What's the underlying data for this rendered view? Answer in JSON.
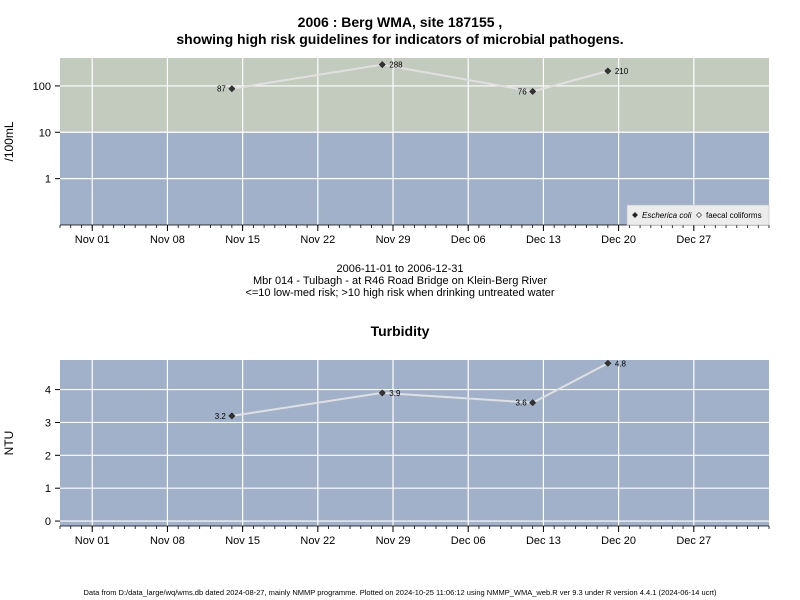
{
  "header": {
    "title_line1": "2006 : Berg WMA, site 187155 ,",
    "title_line2": "showing high risk guidelines for indicators of microbial pathogens."
  },
  "middle": {
    "date_range": "2006-11-01 to 2006-12-31",
    "site_desc": "Mbr 014 - Tulbagh - at R46 Road Bridge on Klein-Berg River",
    "risk_note": "<=10 low-med risk; >10 high risk when drinking untreated water"
  },
  "turbidity_title": "Turbidity",
  "footer": "Data from D:/data_large/wq/wms.db dated 2024-08-27, mainly NMMP programme. Plotted on 2024-10-25 11:06:12 using NMMP_WMA_web.R ver 9.3 under R version 4.4.1 (2024-06-14 ucrt)",
  "colors": {
    "high_risk_band": "#c3cbbf",
    "low_risk_band": "#a1b1c9",
    "grid": "#ffffff",
    "line": "#e0e0e0",
    "point": "#333333"
  },
  "chart_data": [
    {
      "type": "line",
      "ylabel": "/100mL",
      "yscale": "log",
      "ylim": [
        0.1,
        400
      ],
      "xlim": [
        "2006-10-29",
        "2007-01-03"
      ],
      "x_ticks": [
        "Nov 01",
        "Nov 08",
        "Nov 15",
        "Nov 22",
        "Nov 29",
        "Dec 06",
        "Dec 13",
        "Dec 20",
        "Dec 27"
      ],
      "x_tick_dates": [
        "2006-11-01",
        "2006-11-08",
        "2006-11-15",
        "2006-11-22",
        "2006-11-29",
        "2006-12-06",
        "2006-12-13",
        "2006-12-20",
        "2006-12-27"
      ],
      "y_ticks": [
        1,
        10,
        100
      ],
      "y_tick_labels": [
        "1",
        "10",
        "100"
      ],
      "threshold": 10,
      "grid": true,
      "legend_position": "bottom-right",
      "legend": [
        {
          "label": "Escherica coli",
          "italic": true,
          "marker": "filled-diamond"
        },
        {
          "label": "faecal coliforms",
          "italic": false,
          "marker": "open-diamond"
        }
      ],
      "series": [
        {
          "name": "Escherica coli",
          "x": [
            "2006-11-14",
            "2006-11-28",
            "2006-12-12",
            "2006-12-19"
          ],
          "values": [
            87,
            288,
            76,
            210
          ],
          "labels": [
            "87",
            "288",
            "76",
            "210"
          ]
        }
      ]
    },
    {
      "type": "line",
      "title": "Turbidity",
      "ylabel": "NTU",
      "ylim": [
        -0.15,
        4.9
      ],
      "xlim": [
        "2006-10-29",
        "2007-01-03"
      ],
      "x_ticks": [
        "Nov 01",
        "Nov 08",
        "Nov 15",
        "Nov 22",
        "Nov 29",
        "Dec 06",
        "Dec 13",
        "Dec 20",
        "Dec 27"
      ],
      "x_tick_dates": [
        "2006-11-01",
        "2006-11-08",
        "2006-11-15",
        "2006-11-22",
        "2006-11-29",
        "2006-12-06",
        "2006-12-13",
        "2006-12-20",
        "2006-12-27"
      ],
      "y_ticks": [
        0,
        1,
        2,
        3,
        4
      ],
      "y_tick_labels": [
        "0",
        "1",
        "2",
        "3",
        "4"
      ],
      "grid": true,
      "series": [
        {
          "x": [
            "2006-11-14",
            "2006-11-28",
            "2006-12-12",
            "2006-12-19"
          ],
          "values": [
            3.2,
            3.9,
            3.6,
            4.8
          ],
          "labels": [
            "3.2",
            "3.9",
            "3.6",
            "4.8"
          ]
        }
      ]
    }
  ]
}
